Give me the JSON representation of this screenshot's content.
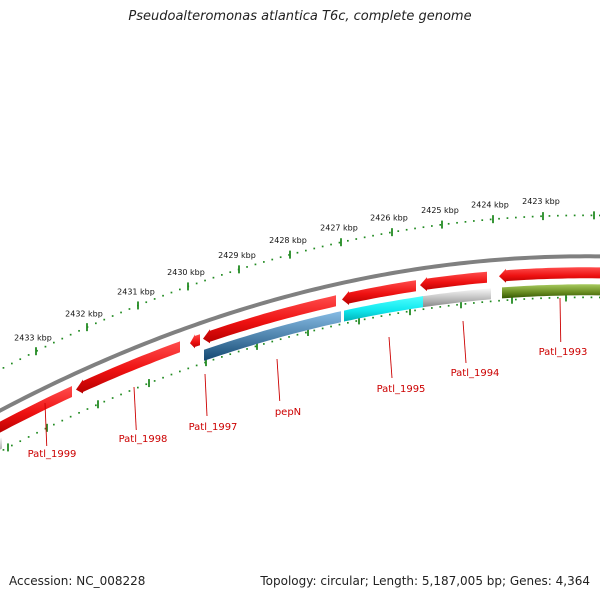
{
  "title": "Pseudoalteromonas atlantica T6c, complete genome",
  "footer": {
    "accession": "Accession: NC_008228",
    "summary": "Topology: circular; Length: 5,187,005 bp; Genes: 4,364"
  },
  "colors": {
    "gene_red": "#ee1111",
    "gene_blue": "#4a7fa8",
    "gene_cyan": "#11e8ee",
    "gene_grey": "#bdbdbd",
    "gene_olive": "#6b8e23",
    "backbone": "#808080",
    "ruler": "#228b22",
    "label": "#cc0000"
  },
  "kbp_labels": [
    "2423 kbp",
    "2424 kbp",
    "2425 kbp",
    "2426 kbp",
    "2427 kbp",
    "2428 kbp",
    "2429 kbp",
    "2430 kbp",
    "2431 kbp",
    "2432 kbp",
    "2433 kbp"
  ],
  "gene_labels": [
    "Patl_1993",
    "Patl_1994",
    "Patl_1995",
    "pepN",
    "Patl_1997",
    "Patl_1998",
    "Patl_1999"
  ],
  "genes": [
    {
      "color": "gene_red",
      "strand": "+"
    },
    {
      "color": "gene_red",
      "strand": "+"
    },
    {
      "color": "gene_red",
      "strand": "+"
    },
    {
      "color": "gene_red",
      "strand": "+"
    },
    {
      "color": "gene_red",
      "strand": "+"
    },
    {
      "color": "gene_red",
      "strand": "+"
    },
    {
      "color": "gene_red",
      "strand": "+"
    },
    {
      "color": "gene_olive",
      "strand": "-"
    },
    {
      "color": "gene_grey",
      "strand": "-"
    },
    {
      "color": "gene_cyan",
      "strand": "-"
    },
    {
      "color": "gene_blue",
      "strand": "-"
    },
    {
      "color": "gene_grey",
      "strand": "-"
    }
  ]
}
